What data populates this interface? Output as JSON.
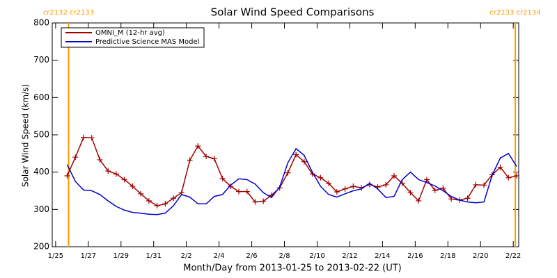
{
  "chart_data": {
    "type": "line",
    "title": "Solar Wind Speed Comparisons",
    "x_label": "Month/Day from 2013-01-25 to 2013-02-22 (UT)",
    "y_label": "Solar Wind Speed (km/s)",
    "x": [
      "2013-01-25T17:00",
      "2013-01-26T05:00",
      "2013-01-26T17:00",
      "2013-01-27T05:00",
      "2013-01-27T17:00",
      "2013-01-28T05:00",
      "2013-01-28T17:00",
      "2013-01-29T05:00",
      "2013-01-29T17:00",
      "2013-01-30T05:00",
      "2013-01-30T17:00",
      "2013-01-31T05:00",
      "2013-01-31T17:00",
      "2013-02-01T05:00",
      "2013-02-01T17:00",
      "2013-02-02T05:00",
      "2013-02-02T17:00",
      "2013-02-03T05:00",
      "2013-02-03T17:00",
      "2013-02-04T05:00",
      "2013-02-04T17:00",
      "2013-02-05T05:00",
      "2013-02-05T17:00",
      "2013-02-06T05:00",
      "2013-02-06T17:00",
      "2013-02-07T05:00",
      "2013-02-07T17:00",
      "2013-02-08T05:00",
      "2013-02-08T17:00",
      "2013-02-09T05:00",
      "2013-02-09T17:00",
      "2013-02-10T05:00",
      "2013-02-10T17:00",
      "2013-02-11T05:00",
      "2013-02-11T17:00",
      "2013-02-12T05:00",
      "2013-02-12T17:00",
      "2013-02-13T05:00",
      "2013-02-13T17:00",
      "2013-02-14T05:00",
      "2013-02-14T17:00",
      "2013-02-15T05:00",
      "2013-02-15T17:00",
      "2013-02-16T05:00",
      "2013-02-16T17:00",
      "2013-02-17T05:00",
      "2013-02-17T17:00",
      "2013-02-18T05:00",
      "2013-02-18T17:00",
      "2013-02-19T05:00",
      "2013-02-19T17:00",
      "2013-02-20T05:00",
      "2013-02-20T17:00",
      "2013-02-21T05:00",
      "2013-02-21T17:00",
      "2013-02-22T05:00"
    ],
    "series": [
      {
        "name": "OMNI_M (12-hr avg)",
        "color": "#a00000",
        "marker": "+",
        "values": [
          390,
          440,
          493,
          492,
          433,
          403,
          395,
          380,
          362,
          342,
          323,
          310,
          315,
          330,
          345,
          432,
          470,
          442,
          436,
          383,
          362,
          348,
          348,
          320,
          322,
          338,
          358,
          398,
          447,
          428,
          395,
          385,
          370,
          347,
          355,
          362,
          358,
          367,
          360,
          366,
          390,
          370,
          345,
          323,
          380,
          351,
          357,
          328,
          325,
          330,
          366,
          365,
          393,
          413,
          385,
          390
        ]
      },
      {
        "name": "Predictive Science MAS Model",
        "color": "#0000cc",
        "values": [
          420,
          375,
          352,
          350,
          340,
          323,
          308,
          298,
          292,
          290,
          287,
          286,
          290,
          310,
          340,
          333,
          315,
          315,
          335,
          340,
          365,
          382,
          380,
          368,
          345,
          332,
          360,
          425,
          463,
          445,
          400,
          362,
          340,
          333,
          342,
          350,
          355,
          370,
          355,
          332,
          335,
          380,
          400,
          380,
          372,
          363,
          350,
          335,
          325,
          320,
          318,
          320,
          392,
          438,
          450,
          415
        ]
      }
    ],
    "annotations": [
      {
        "text": "cr2132 cr2133",
        "x": "2013-01-25T19:00"
      },
      {
        "text": "cr2133 cr2134",
        "x": "2013-02-22T03:00"
      }
    ],
    "annotation_color": "#ff9900",
    "xlim": [
      "2013-01-24T19:00",
      "2013-02-22T08:00"
    ],
    "xticks": [
      {
        "value": "2013-01-25",
        "label": "1/25"
      },
      {
        "value": "2013-01-27",
        "label": "1/27"
      },
      {
        "value": "2013-01-29",
        "label": "1/29"
      },
      {
        "value": "2013-01-31",
        "label": "1/31"
      },
      {
        "value": "2013-02-02",
        "label": "2/2"
      },
      {
        "value": "2013-02-04",
        "label": "2/4"
      },
      {
        "value": "2013-02-06",
        "label": "2/6"
      },
      {
        "value": "2013-02-08",
        "label": "2/8"
      },
      {
        "value": "2013-02-10",
        "label": "2/10"
      },
      {
        "value": "2013-02-12",
        "label": "2/12"
      },
      {
        "value": "2013-02-14",
        "label": "2/14"
      },
      {
        "value": "2013-02-16",
        "label": "2/16"
      },
      {
        "value": "2013-02-18",
        "label": "2/18"
      },
      {
        "value": "2013-02-20",
        "label": "2/20"
      },
      {
        "value": "2013-02-22",
        "label": "2/22"
      }
    ],
    "ylim": [
      200,
      800
    ],
    "yticks": [
      200,
      300,
      400,
      500,
      600,
      700,
      800
    ],
    "legend": "upper left",
    "grid": false
  }
}
